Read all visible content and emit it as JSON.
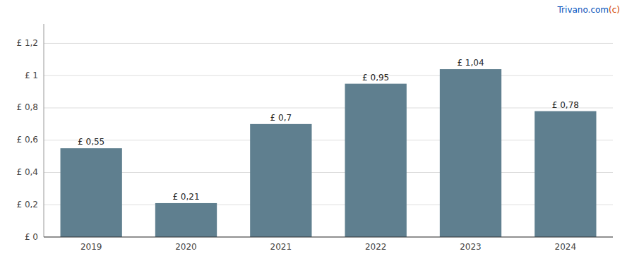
{
  "chart_data": {
    "type": "bar",
    "categories": [
      "2019",
      "2020",
      "2021",
      "2022",
      "2023",
      "2024"
    ],
    "values": [
      0.55,
      0.21,
      0.7,
      0.95,
      1.04,
      0.78
    ],
    "value_labels": [
      "£ 0,55",
      "£ 0,21",
      "£ 0,7",
      "£ 0,95",
      "£ 1,04",
      "£ 0,78"
    ],
    "data_labels": true,
    "color": "#5f7f8f",
    "ylim": [
      0,
      1.32
    ],
    "yticks": [
      {
        "value": 0,
        "label": "£ 0"
      },
      {
        "value": 0.2,
        "label": "£ 0,2"
      },
      {
        "value": 0.4,
        "label": "£ 0,4"
      },
      {
        "value": 0.6,
        "label": "£ 0,6"
      },
      {
        "value": 0.8,
        "label": "£ 0,8"
      },
      {
        "value": 1.0,
        "label": "£ 1"
      },
      {
        "value": 1.2,
        "label": "£ 1,2"
      }
    ],
    "grid": true,
    "annotations": [
      {
        "text": " Trivano.com",
        "color": "#0050bb"
      },
      {
        "text": "(c)",
        "color": "#d04000"
      }
    ]
  }
}
